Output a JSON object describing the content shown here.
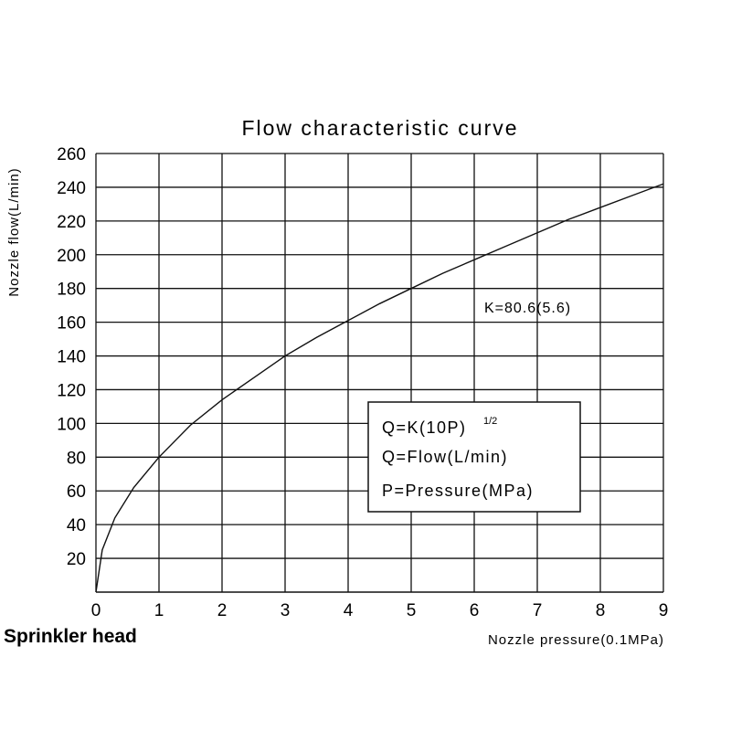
{
  "caption": "Sprinkler head",
  "chart_data": {
    "type": "line",
    "title": "Flow characteristic curve",
    "xlabel": "Nozzle pressure(0.1MPa)",
    "ylabel": "Nozzle flow(L/min)",
    "xlim": [
      0,
      9
    ],
    "ylim": [
      0,
      260
    ],
    "xticks": [
      "0",
      "1",
      "2",
      "3",
      "4",
      "5",
      "6",
      "7",
      "8",
      "9"
    ],
    "yticks": [
      "20",
      "40",
      "60",
      "80",
      "100",
      "120",
      "140",
      "160",
      "180",
      "200",
      "220",
      "240",
      "260"
    ],
    "grid": true,
    "series": [
      {
        "x": [
          0,
          0.1,
          0.3,
          0.6,
          1,
          1.5,
          2,
          2.5,
          3,
          3.5,
          4,
          4.5,
          5,
          5.5,
          6,
          6.5,
          7,
          7.5,
          8,
          8.5,
          9
        ],
        "values": [
          0,
          25,
          44,
          62,
          80,
          99,
          114,
          127,
          140,
          151,
          161,
          171,
          180,
          189,
          197,
          205,
          213,
          221,
          228,
          235,
          242
        ]
      }
    ],
    "annotations": {
      "k_label": "K=80.6(5.6)",
      "formula_line1": "Q=K(10P)",
      "formula_exp": "1/2",
      "formula_line2": "Q=Flow(L/min)",
      "formula_line3": "P=Pressure(MPa)"
    }
  }
}
